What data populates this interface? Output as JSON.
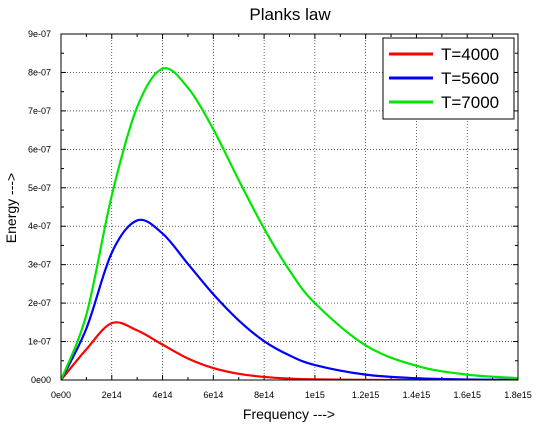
{
  "chart_data": {
    "type": "line",
    "title": "Planks law",
    "xlabel": "Frequency --->",
    "ylabel": "Energy --->",
    "xlim": [
      0,
      1800000000000000.0
    ],
    "ylim": [
      0,
      9e-07
    ],
    "x_tick_labels": [
      "0e00",
      "2e14",
      "4e14",
      "6e14",
      "8e14",
      "1e15",
      "1.2e15",
      "1.4e15",
      "1.6e15",
      "1.8e15"
    ],
    "y_tick_labels": [
      "0e00",
      "1e-07",
      "2e-07",
      "3e-07",
      "4e-07",
      "5e-07",
      "6e-07",
      "7e-07",
      "8e-07",
      "9e-07"
    ],
    "grid": true,
    "legend_position": "top-right",
    "x": [
      0,
      100000000000000.0,
      200000000000000.0,
      300000000000000.0,
      400000000000000.0,
      500000000000000.0,
      600000000000000.0,
      700000000000000.0,
      800000000000000.0,
      900000000000000.0,
      1000000000000000.0,
      1200000000000000.0,
      1400000000000000.0,
      1600000000000000.0,
      1800000000000000.0
    ],
    "series": [
      {
        "name": "T=4000",
        "color": "#ff0000",
        "values": [
          0,
          8e-08,
          1.48e-07,
          1.29e-07,
          9.2e-08,
          5.6e-08,
          3.1e-08,
          1.6e-08,
          7.9e-09,
          3.7e-09,
          1.7e-09,
          3e-10,
          5e-11,
          8e-12,
          1e-12
        ]
      },
      {
        "name": "T=5600",
        "color": "#0000ff",
        "values": [
          0,
          1.34e-07,
          3.31e-07,
          4.15e-07,
          3.81e-07,
          3.02e-07,
          2.23e-07,
          1.55e-07,
          1.01e-07,
          6.4e-08,
          3.9e-08,
          1.4e-08,
          4.6e-09,
          1.4e-09,
          4e-10
        ]
      },
      {
        "name": "T=7000",
        "color": "#00e600",
        "values": [
          0,
          1.7e-07,
          4.8e-07,
          7.1e-07,
          8.1e-07,
          7.6e-07,
          6.52e-07,
          5.2e-07,
          3.94e-07,
          2.85e-07,
          2e-07,
          9e-08,
          3.7e-08,
          1.4e-08,
          5e-09
        ]
      }
    ]
  }
}
